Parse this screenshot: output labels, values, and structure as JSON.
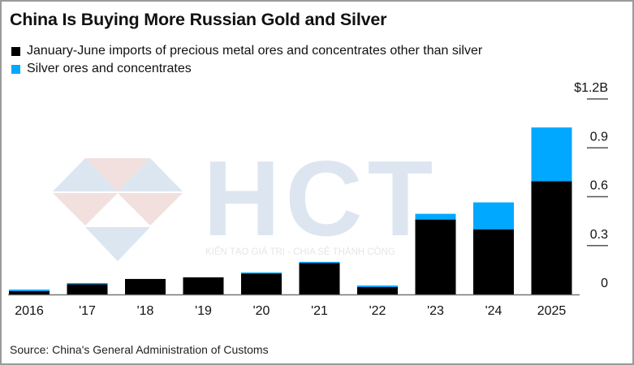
{
  "title": "China Is Buying More Russian Gold and Silver",
  "legend": [
    {
      "label": "January-June imports of precious metal ores and concentrates other than silver",
      "color": "#000000"
    },
    {
      "label": "Silver ores and concentrates",
      "color": "#00a8ff"
    }
  ],
  "source": "Source: China's General Administration of Customs",
  "watermark": {
    "logo_text": "HCT",
    "tagline": "KIẾN TẠO GIÁ TRỊ - CHIA SẺ THÀNH CÔNG"
  },
  "chart_data": {
    "type": "bar",
    "stacked": true,
    "title": "China Is Buying More Russian Gold and Silver",
    "xlabel": "",
    "ylabel": "",
    "categories": [
      "2016",
      "'17",
      "'18",
      "'19",
      "'20",
      "'21",
      "'22",
      "'23",
      "'24",
      "2025"
    ],
    "series": [
      {
        "name": "January-June imports of precious metal ores and concentrates other than silver",
        "color": "#000000",
        "values": [
          0.02,
          0.065,
          0.095,
          0.105,
          0.13,
          0.195,
          0.045,
          0.46,
          0.4,
          0.695
        ]
      },
      {
        "name": "Silver ores and concentrates",
        "color": "#00a8ff",
        "values": [
          0.01,
          0.005,
          0.0,
          0.0,
          0.005,
          0.005,
          0.01,
          0.035,
          0.165,
          0.33
        ]
      }
    ],
    "ylim": [
      0,
      1.2
    ],
    "yticks": [
      0,
      0.3,
      0.6,
      0.9,
      1.2
    ],
    "ytick_labels": [
      "0",
      "0.3",
      "0.6",
      "0.9",
      "$1.2B"
    ],
    "y_axis_side": "right",
    "grid": false,
    "legend_position": "top-left"
  }
}
